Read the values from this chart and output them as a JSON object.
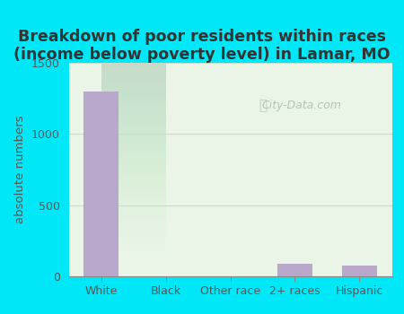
{
  "title": "Breakdown of poor residents within races\n(income below poverty level) in Lamar, MO",
  "categories": [
    "White",
    "Black",
    "Other race",
    "2+ races",
    "Hispanic"
  ],
  "values": [
    1300,
    0,
    0,
    90,
    75
  ],
  "bar_color": "#b8a8cc",
  "ylim": [
    0,
    1500
  ],
  "yticks": [
    0,
    500,
    1000,
    1500
  ],
  "ylabel": "absolute numbers",
  "background_outer": "#00e8f8",
  "background_inner_top": "#eaf5e8",
  "background_inner_bottom": "#d8edd8",
  "grid_color": "#c8dcc8",
  "title_fontsize": 12.5,
  "title_color": "#333333",
  "axis_label_fontsize": 9.5,
  "tick_fontsize": 9,
  "tick_color": "#555555",
  "watermark_text": "City-Data.com",
  "watermark_color": "#aabcaa"
}
